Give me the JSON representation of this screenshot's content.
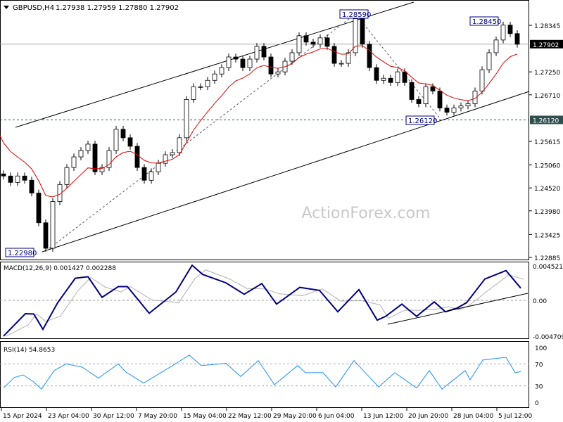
{
  "header": {
    "symbol": "GBPUSD,H4",
    "ohlc": "1.27938 1.27959 1.27880 1.27902"
  },
  "watermark": "ActionForex.com",
  "colors": {
    "ma": "#e00000",
    "macd": "#000080",
    "signal": "#b0b0b0",
    "rsi": "#1e90ff",
    "current_price_bg": "#000000",
    "level_bg": "#2f4f4f"
  },
  "chart_data": [
    {
      "type": "candlestick",
      "title": "GBPUSD,H4",
      "price_ticks": [
        "1.28345",
        "1.27250",
        "1.26710",
        "1.25615",
        "1.25060",
        "1.24520",
        "1.23980",
        "1.23425",
        "1.22885"
      ],
      "ylim": [
        1.22885,
        1.28345
      ],
      "x_ticks": [
        "15 Apr 2024",
        "23 Apr 04:00",
        "30 Apr 12:00",
        "7 May 20:00",
        "15 May 04:00",
        "22 May 12:00",
        "29 May 20:00",
        "6 Jun 04:00",
        "13 Jun 12:00",
        "20 Jun 20:00",
        "28 Jun 04:00",
        "5 Jul 12:00"
      ],
      "close_approx": [
        1.248,
        1.2465,
        1.248,
        1.247,
        1.244,
        1.237,
        1.231,
        1.242,
        1.246,
        1.25,
        1.2525,
        1.254,
        1.2555,
        1.249,
        1.25,
        1.254,
        1.259,
        1.257,
        1.255,
        1.25,
        1.247,
        1.249,
        1.251,
        1.253,
        1.2535,
        1.257,
        1.266,
        1.269,
        1.269,
        1.2705,
        1.272,
        1.2735,
        1.276,
        1.2755,
        1.2735,
        1.2755,
        1.2785,
        1.276,
        1.272,
        1.2725,
        1.275,
        1.277,
        1.281,
        1.2795,
        1.279,
        1.2805,
        1.2785,
        1.2745,
        1.2745,
        1.277,
        1.285,
        1.279,
        1.2735,
        1.2705,
        1.271,
        1.27,
        1.2725,
        1.27,
        1.266,
        1.265,
        1.269,
        1.268,
        1.264,
        1.263,
        1.264,
        1.2645,
        1.265,
        1.268,
        1.273,
        1.277,
        1.28,
        1.2835,
        1.2815,
        1.279
      ],
      "current_price": "1.27902",
      "support_level": "1.26120",
      "annotations": [
        "1.28590",
        "1.28450",
        "1.26120",
        "1.22980"
      ]
    },
    {
      "type": "line",
      "title": "MACD(12,26,9) 0.001427 0.002288",
      "y_ticks": [
        "0.004521",
        "0.00",
        "-0.004709"
      ],
      "ylim": [
        -0.004709,
        0.004521
      ],
      "macd_approx": [
        -0.0047,
        -0.00175,
        -0.0018,
        -0.0038,
        -0.0003,
        0.0029,
        0.0031,
        0.0004,
        0.0018,
        0.0018,
        -0.0017,
        0.0011,
        0.0046,
        0.0034,
        0.0023,
        0.0008,
        0.0022,
        -0.0005,
        0.0017,
        0.0013,
        -0.0015,
        0.0014,
        -0.0026,
        -0.0021,
        -0.0005,
        -0.0021,
        -0.0002,
        -0.0015,
        -0.001,
        -0.0003,
        0.0028,
        0.0039,
        0.0016
      ]
    },
    {
      "type": "line",
      "title": "RSI(14) 54.8653",
      "y_ticks": [
        "100",
        "70",
        "30",
        "0"
      ],
      "ylim": [
        0,
        100
      ],
      "levels": [
        70,
        30
      ],
      "rsi_approx": [
        26,
        45,
        50,
        37,
        24,
        58,
        70,
        64,
        44,
        70,
        55,
        35,
        63,
        86,
        67,
        71,
        47,
        76,
        32,
        67,
        54,
        54,
        28,
        76,
        28,
        54,
        26,
        58,
        24,
        58,
        41,
        77,
        82,
        54,
        56
      ]
    }
  ]
}
